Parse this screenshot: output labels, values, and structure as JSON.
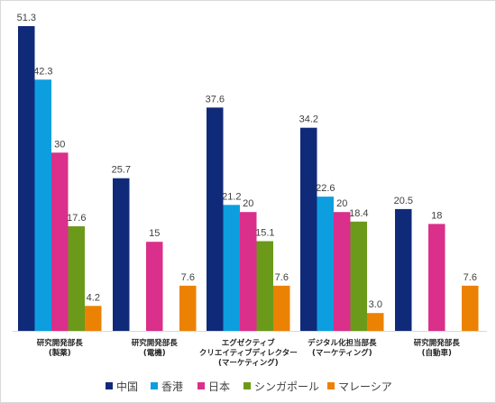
{
  "chart_data": {
    "type": "bar",
    "title": "",
    "xlabel": "",
    "ylabel": "",
    "ylim": [
      0,
      51.3
    ],
    "grid": false,
    "legend_position": "bottom",
    "categories": [
      [
        "研究開発部長",
        "(製薬)"
      ],
      [
        "研究開発部長",
        "(電機)"
      ],
      [
        "エグゼクティブ",
        "クリエイティブディレクター",
        "(マーケティング)"
      ],
      [
        "デジタル化担当部長",
        "(マーケティング)"
      ],
      [
        "研究開発部長",
        "(自動車)"
      ]
    ],
    "series": [
      {
        "name": "中国",
        "color": "#102a7a",
        "values": [
          51.3,
          25.7,
          37.6,
          34.2,
          20.5
        ],
        "labels": [
          "51.3",
          "25.7",
          "37.6",
          "34.2",
          "20.5"
        ]
      },
      {
        "name": "香港",
        "color": "#0d9ee0",
        "values": [
          42.3,
          null,
          21.2,
          22.6,
          null
        ],
        "labels": [
          "42.3",
          "",
          "21.2",
          "22.6",
          ""
        ]
      },
      {
        "name": "日本",
        "color": "#da2f8a",
        "values": [
          30,
          15,
          20,
          20,
          18
        ],
        "labels": [
          "30",
          "15",
          "20",
          "20",
          "18"
        ]
      },
      {
        "name": "シンガポール",
        "color": "#6b9a1a",
        "values": [
          17.6,
          null,
          15.1,
          18.4,
          null
        ],
        "labels": [
          "17.6",
          "",
          "15.1",
          "18.4",
          ""
        ]
      },
      {
        "name": "マレーシア",
        "color": "#ec8204",
        "values": [
          4.2,
          7.6,
          7.6,
          3.0,
          7.6
        ],
        "labels": [
          "4.2",
          "7.6",
          "7.6",
          "3.0",
          "7.6"
        ]
      }
    ]
  }
}
